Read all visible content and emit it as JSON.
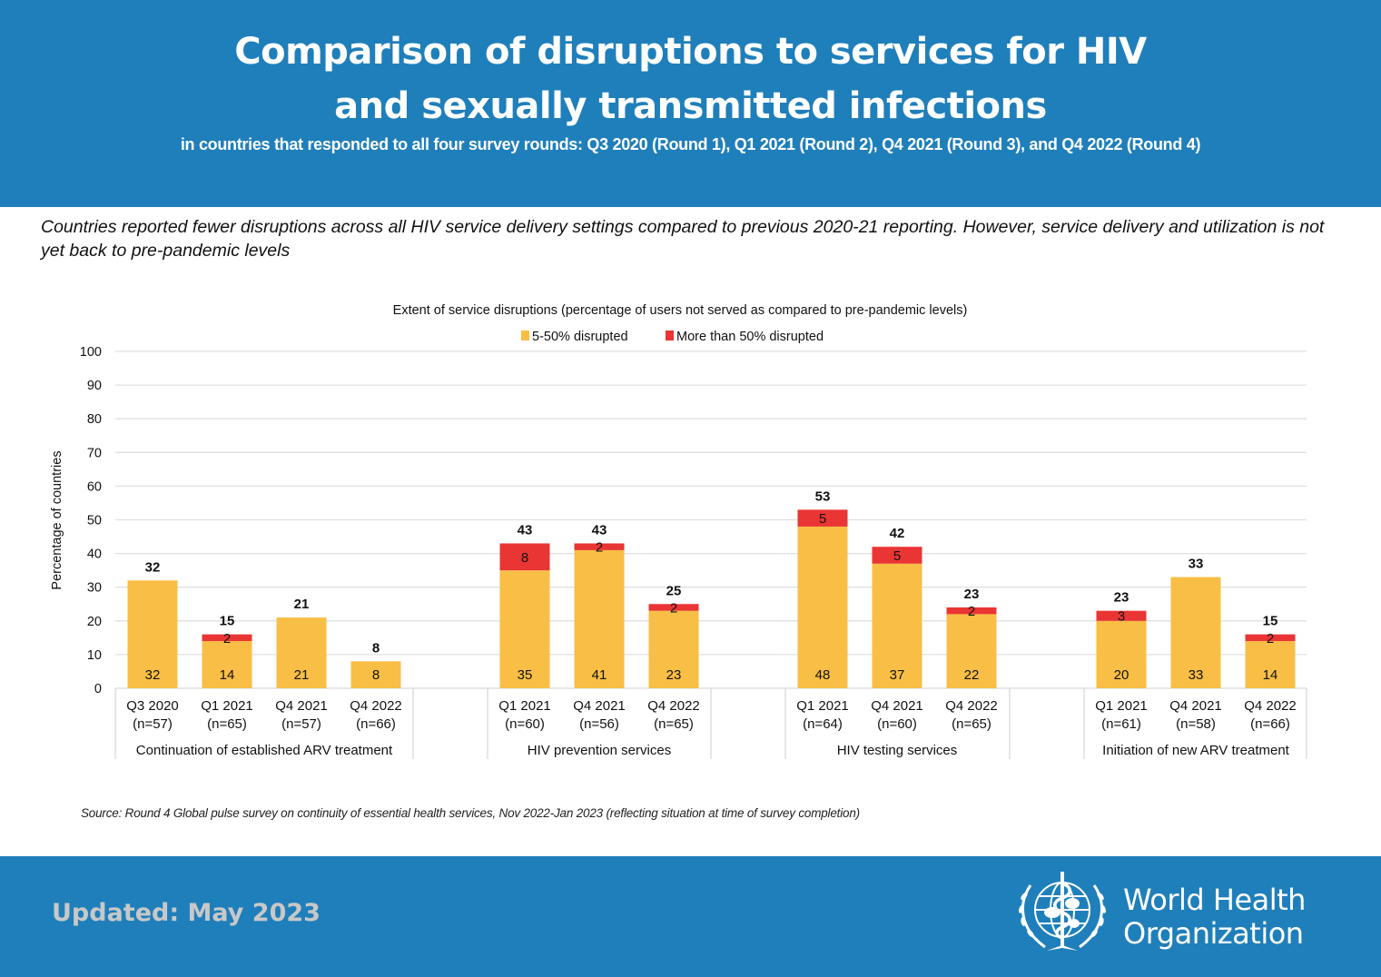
{
  "header": {
    "title_line1": "Comparison of disruptions to services for HIV",
    "title_line2": "and sexually transmitted infections",
    "subtitle": "in countries that responded to all four survey rounds: Q3 2020 (Round 1), Q1 2021 (Round 2), Q4 2021 (Round 3), and Q4 2022 (Round 4)"
  },
  "intro_text": "Countries reported fewer disruptions across all HIV service delivery settings compared to previous 2020-21 reporting. However, service delivery and utilization is not yet back to pre-pandemic levels",
  "colors": {
    "header_bg": "#1f7fba",
    "moderate": "#f9be45",
    "severe": "#e93534"
  },
  "chart_data": {
    "type": "bar",
    "stacked": true,
    "title": "Extent of service disruptions (percentage of users not served as compared to pre-pandemic levels)",
    "ylabel": "Percentage of countries",
    "xlabel": "",
    "ylim": [
      0,
      100
    ],
    "yticks": [
      0,
      10,
      20,
      30,
      40,
      50,
      60,
      70,
      80,
      90,
      100
    ],
    "grid": true,
    "legend_position": "top-center",
    "legend": [
      "5-50% disrupted",
      "More than 50% disrupted"
    ],
    "series": [
      {
        "name": "5-50% disrupted",
        "color": "#f9be45"
      },
      {
        "name": "More than 50% disrupted",
        "color": "#e93534"
      }
    ],
    "groups": [
      {
        "name": "Continuation of established ARV treatment",
        "bars": [
          {
            "period": "Q3 2020",
            "n": "(n=57)",
            "moderate": 32,
            "severe": 0,
            "total": 32
          },
          {
            "period": "Q1 2021",
            "n": "(n=65)",
            "moderate": 14,
            "severe": 2,
            "total": 15
          },
          {
            "period": "Q4 2021",
            "n": "(n=57)",
            "moderate": 21,
            "severe": 0,
            "total": 21
          },
          {
            "period": "Q4 2022",
            "n": "(n=66)",
            "moderate": 8,
            "severe": 0,
            "total": 8
          }
        ]
      },
      {
        "name": "HIV prevention services",
        "bars": [
          {
            "period": "Q1 2021",
            "n": "(n=60)",
            "moderate": 35,
            "severe": 8,
            "total": 43
          },
          {
            "period": "Q4 2021",
            "n": "(n=56)",
            "moderate": 41,
            "severe": 2,
            "total": 43
          },
          {
            "period": "Q4 2022",
            "n": "(n=65)",
            "moderate": 23,
            "severe": 2,
            "total": 25
          }
        ]
      },
      {
        "name": "HIV testing services",
        "bars": [
          {
            "period": "Q1 2021",
            "n": "(n=64)",
            "moderate": 48,
            "severe": 5,
            "total": 53
          },
          {
            "period": "Q4 2021",
            "n": "(n=60)",
            "moderate": 37,
            "severe": 5,
            "total": 42
          },
          {
            "period": "Q4 2022",
            "n": "(n=65)",
            "moderate": 22,
            "severe": 2,
            "total": 23
          }
        ]
      },
      {
        "name": "Initiation of new ARV treatment",
        "bars": [
          {
            "period": "Q1 2021",
            "n": "(n=61)",
            "moderate": 20,
            "severe": 3,
            "total": 23
          },
          {
            "period": "Q4 2021",
            "n": "(n=58)",
            "moderate": 33,
            "severe": 0,
            "total": 33
          },
          {
            "period": "Q4 2022",
            "n": "(n=66)",
            "moderate": 14,
            "severe": 2,
            "total": 15
          }
        ]
      }
    ]
  },
  "source_text": "Source: Round 4 Global pulse survey on continuity of essential health  services, Nov 2022-Jan 2023 (reflecting situation at time of survey completion)",
  "footer": {
    "updated": "Updated: May 2023",
    "org_line1": "World Health",
    "org_line2": "Organization"
  }
}
